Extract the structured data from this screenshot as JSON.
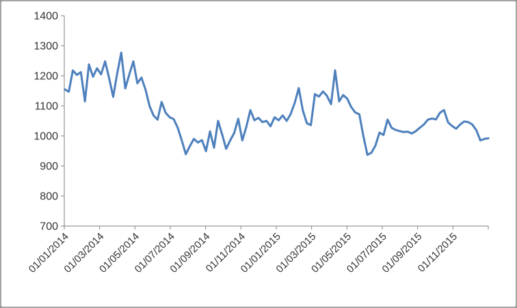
{
  "chart_data": {
    "type": "line",
    "title": "",
    "xlabel": "",
    "ylabel": "",
    "ylim": [
      700,
      1400
    ],
    "y_tick_labels": [
      "1400",
      "1300",
      "1200",
      "1100",
      "1000",
      "900",
      "800",
      "700"
    ],
    "y_tick_values": [
      1400,
      1300,
      1200,
      1100,
      1000,
      900,
      800,
      700
    ],
    "x_tick_labels": [
      "01/01/2014",
      "01/03/2014",
      "01/05/2014",
      "01/07/2014",
      "01/09/2014",
      "01/11/2014",
      "01/01/2015",
      "01/03/2015",
      "01/05/2015",
      "01/07/2015",
      "01/09/2015",
      "01/11/2015"
    ],
    "x_tick_count": 13,
    "grid": false,
    "legend": "none",
    "series": [
      {
        "color": "#4F81BD",
        "frequency_hint": "weekly points between labeled 2-month ticks",
        "values": [
          1155,
          1147,
          1218,
          1203,
          1212,
          1115,
          1238,
          1197,
          1225,
          1205,
          1248,
          1192,
          1130,
          1208,
          1277,
          1158,
          1205,
          1248,
          1175,
          1194,
          1155,
          1100,
          1068,
          1054,
          1113,
          1077,
          1062,
          1056,
          1027,
          985,
          939,
          966,
          990,
          978,
          986,
          949,
          1015,
          961,
          1050,
          1005,
          957,
          985,
          1010,
          1057,
          985,
          1030,
          1086,
          1052,
          1060,
          1046,
          1050,
          1032,
          1062,
          1052,
          1068,
          1050,
          1073,
          1110,
          1159,
          1085,
          1042,
          1036,
          1139,
          1131,
          1148,
          1133,
          1106,
          1218,
          1115,
          1136,
          1124,
          1096,
          1078,
          1072,
          1000,
          937,
          944,
          968,
          1011,
          1003,
          1054,
          1027,
          1020,
          1016,
          1013,
          1014,
          1008,
          1016,
          1027,
          1038,
          1054,
          1058,
          1055,
          1077,
          1086,
          1045,
          1033,
          1024,
          1038,
          1048,
          1046,
          1038,
          1019,
          985,
          990,
          992
        ]
      }
    ]
  },
  "colors": {
    "series_line": "#4F81BD",
    "axis": "#7f7f7f",
    "tick_text": "#333333",
    "frame_border": "#a3a3a3",
    "background": "#ffffff"
  }
}
